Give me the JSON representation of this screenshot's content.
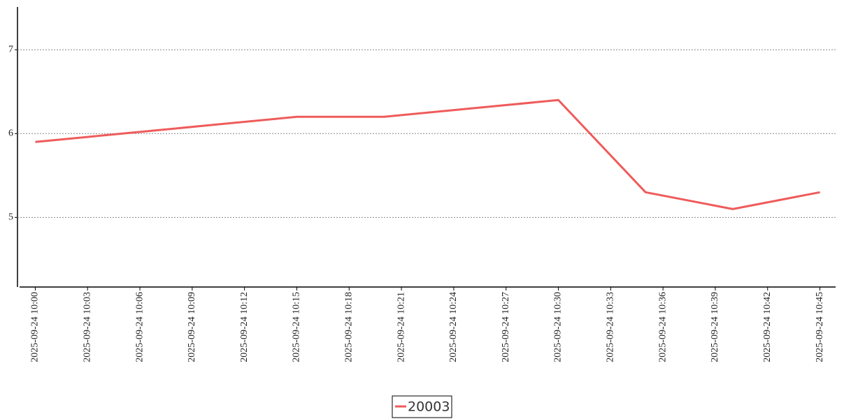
{
  "chart_data": {
    "type": "line",
    "x": [
      "2025-09-24 10:00",
      "2025-09-24 10:05",
      "2025-09-24 10:10",
      "2025-09-24 10:15",
      "2025-09-24 10:20",
      "2025-09-24 10:25",
      "2025-09-24 10:30",
      "2025-09-24 10:35",
      "2025-09-24 10:40",
      "2025-09-24 10:45"
    ],
    "series": [
      {
        "name": "20003",
        "color": "#ef5b5b",
        "values": [
          5.9,
          6.0,
          6.1,
          6.2,
          6.2,
          6.3,
          6.4,
          5.3,
          5.1,
          5.3
        ]
      }
    ],
    "xlim": [
      "2025-09-24 09:59:06",
      "2025-09-24 10:45:54"
    ],
    "xticks": [
      "2025-09-24 10:00",
      "2025-09-24 10:03",
      "2025-09-24 10:06",
      "2025-09-24 10:09",
      "2025-09-24 10:12",
      "2025-09-24 10:15",
      "2025-09-24 10:18",
      "2025-09-24 10:21",
      "2025-09-24 10:24",
      "2025-09-24 10:27",
      "2025-09-24 10:30",
      "2025-09-24 10:33",
      "2025-09-24 10:36",
      "2025-09-24 10:39",
      "2025-09-24 10:42",
      "2025-09-24 10:45"
    ],
    "ylim": [
      4.17,
      7.51
    ],
    "yticks": [
      5,
      6,
      7
    ],
    "grid": true,
    "legend": "bottom"
  }
}
